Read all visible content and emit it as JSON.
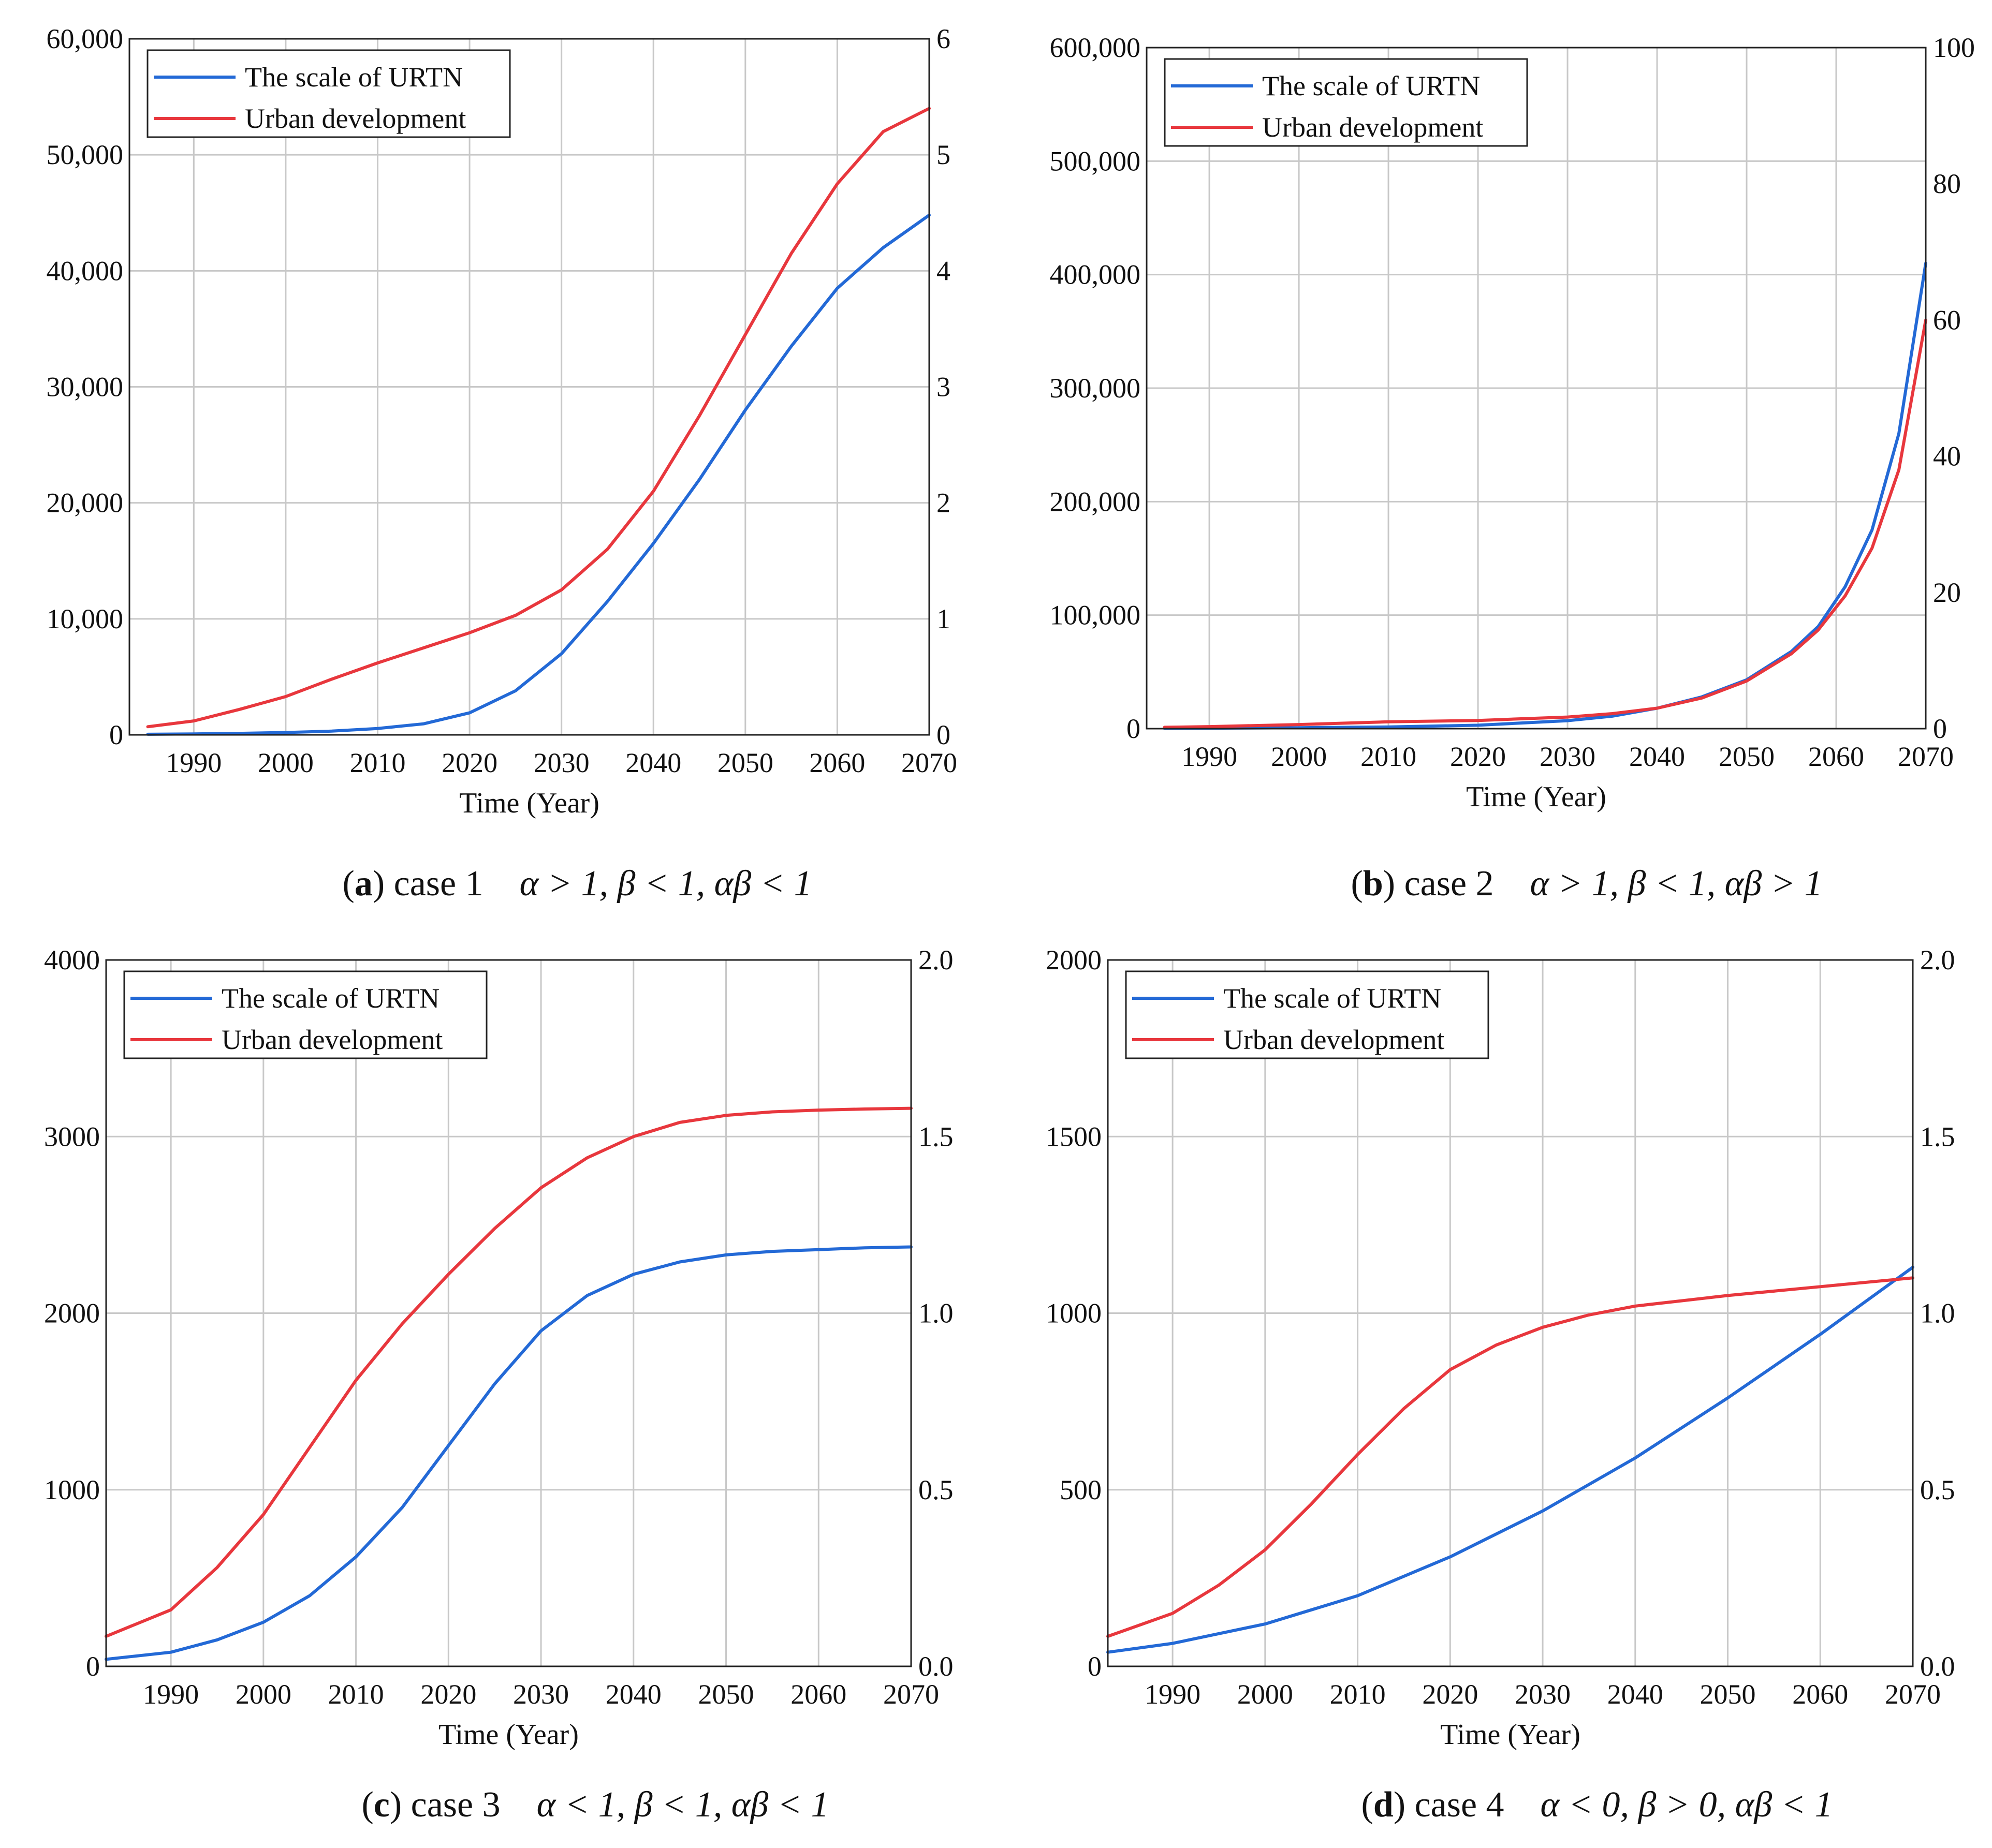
{
  "colors": {
    "urtn": "#2369d6",
    "urban": "#e8373d"
  },
  "chart_data": [
    {
      "id": "a",
      "type": "line",
      "xlabel": "Time (Year)",
      "xlim": [
        1983,
        2070
      ],
      "xticks": [
        1990,
        2000,
        2010,
        2020,
        2030,
        2040,
        2050,
        2060,
        2070
      ],
      "y_left": {
        "lim": [
          0,
          60000
        ],
        "ticks": [
          0,
          10000,
          20000,
          30000,
          40000,
          50000,
          60000
        ],
        "tick_labels": [
          "0",
          "10,000",
          "20,000",
          "30,000",
          "40,000",
          "50,000",
          "60,000"
        ]
      },
      "y_right": {
        "lim": [
          0,
          6
        ],
        "ticks": [
          0,
          1,
          2,
          3,
          4,
          5,
          6
        ],
        "tick_labels": [
          "0",
          "1",
          "2",
          "3",
          "4",
          "5",
          "6"
        ]
      },
      "legend": [
        "The scale of URTN",
        "Urban development"
      ],
      "caption": {
        "label": "a",
        "text": "case 1",
        "condition": "α > 1, β < 1, αβ < 1"
      },
      "series": [
        {
          "name": "The scale of URTN",
          "axis": "left",
          "color_key": "urtn",
          "x": [
            1985,
            1990,
            1995,
            2000,
            2005,
            2010,
            2015,
            2020,
            2025,
            2030,
            2035,
            2040,
            2045,
            2050,
            2055,
            2060,
            2065,
            2070
          ],
          "y": [
            50,
            80,
            130,
            200,
            320,
            550,
            950,
            1900,
            3800,
            7000,
            11500,
            16500,
            22000,
            28000,
            33500,
            38500,
            42000,
            44800
          ]
        },
        {
          "name": "Urban development",
          "axis": "right",
          "color_key": "urban",
          "x": [
            1985,
            1990,
            1995,
            2000,
            2005,
            2010,
            2015,
            2020,
            2025,
            2030,
            2035,
            2040,
            2045,
            2050,
            2055,
            2060,
            2065,
            2070
          ],
          "y": [
            0.07,
            0.12,
            0.22,
            0.33,
            0.48,
            0.62,
            0.75,
            0.88,
            1.03,
            1.25,
            1.6,
            2.1,
            2.75,
            3.45,
            4.15,
            4.75,
            5.2,
            5.4
          ]
        }
      ]
    },
    {
      "id": "b",
      "type": "line",
      "xlabel": "Time (Year)",
      "xlim": [
        1983,
        2070
      ],
      "xticks": [
        1990,
        2000,
        2010,
        2020,
        2030,
        2040,
        2050,
        2060,
        2070
      ],
      "y_left": {
        "lim": [
          0,
          600000
        ],
        "ticks": [
          0,
          100000,
          200000,
          300000,
          400000,
          500000,
          600000
        ],
        "tick_labels": [
          "0",
          "100,000",
          "200,000",
          "300,000",
          "400,000",
          "500,000",
          "600,000"
        ]
      },
      "y_right": {
        "lim": [
          0,
          100
        ],
        "ticks": [
          0,
          20,
          40,
          60,
          80,
          100
        ],
        "tick_labels": [
          "0",
          "20",
          "40",
          "60",
          "80",
          "100"
        ]
      },
      "legend": [
        "The scale of URTN",
        "Urban development"
      ],
      "caption": {
        "label": "b",
        "text": "case 2",
        "condition": "α > 1, β < 1, αβ > 1"
      },
      "series": [
        {
          "name": "The scale of URTN",
          "axis": "left",
          "color_key": "urtn",
          "x": [
            1985,
            1990,
            2000,
            2010,
            2020,
            2030,
            2035,
            2040,
            2045,
            2050,
            2055,
            2058,
            2061,
            2064,
            2067,
            2070
          ],
          "y": [
            200,
            400,
            800,
            1500,
            3000,
            7000,
            11000,
            18000,
            28000,
            43000,
            68000,
            90000,
            125000,
            175000,
            260000,
            410000
          ]
        },
        {
          "name": "Urban development",
          "axis": "right",
          "color_key": "urban",
          "x": [
            1985,
            1990,
            2000,
            2010,
            2020,
            2030,
            2035,
            2040,
            2045,
            2050,
            2055,
            2058,
            2061,
            2064,
            2067,
            2070
          ],
          "y": [
            0.2,
            0.3,
            0.6,
            1.0,
            1.2,
            1.7,
            2.2,
            3.0,
            4.5,
            7.0,
            11.0,
            14.5,
            19.5,
            26.5,
            38.0,
            60.0
          ]
        }
      ]
    },
    {
      "id": "c",
      "type": "line",
      "xlabel": "Time (Year)",
      "xlim": [
        1983,
        2070
      ],
      "xticks": [
        1990,
        2000,
        2010,
        2020,
        2030,
        2040,
        2050,
        2060,
        2070
      ],
      "y_left": {
        "lim": [
          0,
          4000
        ],
        "ticks": [
          0,
          1000,
          2000,
          3000,
          4000
        ],
        "tick_labels": [
          "0",
          "1000",
          "2000",
          "3000",
          "4000"
        ]
      },
      "y_right": {
        "lim": [
          0,
          2
        ],
        "ticks": [
          0,
          0.5,
          1,
          1.5,
          2
        ],
        "tick_labels": [
          "0.0",
          "0.5",
          "1.0",
          "1.5",
          "2.0"
        ]
      },
      "legend": [
        "The scale of URTN",
        "Urban development"
      ],
      "caption": {
        "label": "c",
        "text": "case 3",
        "condition": "α < 1, β < 1, αβ < 1"
      },
      "series": [
        {
          "name": "The scale of URTN",
          "axis": "left",
          "color_key": "urtn",
          "x": [
            1983,
            1990,
            1995,
            2000,
            2005,
            2010,
            2015,
            2020,
            2025,
            2030,
            2035,
            2040,
            2045,
            2050,
            2055,
            2060,
            2065,
            2070
          ],
          "y": [
            40,
            80,
            150,
            250,
            400,
            620,
            900,
            1250,
            1600,
            1900,
            2100,
            2220,
            2290,
            2330,
            2350,
            2360,
            2370,
            2375
          ]
        },
        {
          "name": "Urban development",
          "axis": "right",
          "color_key": "urban",
          "x": [
            1983,
            1990,
            1995,
            2000,
            2005,
            2010,
            2015,
            2020,
            2025,
            2030,
            2035,
            2040,
            2045,
            2050,
            2055,
            2060,
            2065,
            2070
          ],
          "y": [
            0.085,
            0.16,
            0.28,
            0.43,
            0.62,
            0.81,
            0.97,
            1.11,
            1.24,
            1.355,
            1.44,
            1.5,
            1.54,
            1.56,
            1.57,
            1.575,
            1.578,
            1.58
          ]
        }
      ]
    },
    {
      "id": "d",
      "type": "line",
      "xlabel": "Time (Year)",
      "xlim": [
        1983,
        2070
      ],
      "xticks": [
        1990,
        2000,
        2010,
        2020,
        2030,
        2040,
        2050,
        2060,
        2070
      ],
      "y_left": {
        "lim": [
          0,
          2000
        ],
        "ticks": [
          0,
          500,
          1000,
          1500,
          2000
        ],
        "tick_labels": [
          "0",
          "500",
          "1000",
          "1500",
          "2000"
        ]
      },
      "y_right": {
        "lim": [
          0,
          2
        ],
        "ticks": [
          0,
          0.5,
          1,
          1.5,
          2
        ],
        "tick_labels": [
          "0.0",
          "0.5",
          "1.0",
          "1.5",
          "2.0"
        ]
      },
      "legend": [
        "The scale of URTN",
        "Urban development"
      ],
      "caption": {
        "label": "d",
        "text": "case 4",
        "condition": "α < 0, β > 0, αβ < 1"
      },
      "series": [
        {
          "name": "The scale of URTN",
          "axis": "left",
          "color_key": "urtn",
          "x": [
            1983,
            1990,
            2000,
            2010,
            2020,
            2030,
            2040,
            2050,
            2060,
            2070
          ],
          "y": [
            40,
            65,
            120,
            200,
            310,
            440,
            590,
            760,
            940,
            1130
          ]
        },
        {
          "name": "Urban development",
          "axis": "right",
          "color_key": "urban",
          "x": [
            1983,
            1990,
            1995,
            2000,
            2005,
            2010,
            2015,
            2020,
            2025,
            2030,
            2035,
            2040,
            2050,
            2060,
            2070
          ],
          "y": [
            0.085,
            0.15,
            0.23,
            0.33,
            0.46,
            0.6,
            0.73,
            0.84,
            0.91,
            0.96,
            0.995,
            1.02,
            1.05,
            1.075,
            1.1
          ]
        }
      ]
    }
  ]
}
